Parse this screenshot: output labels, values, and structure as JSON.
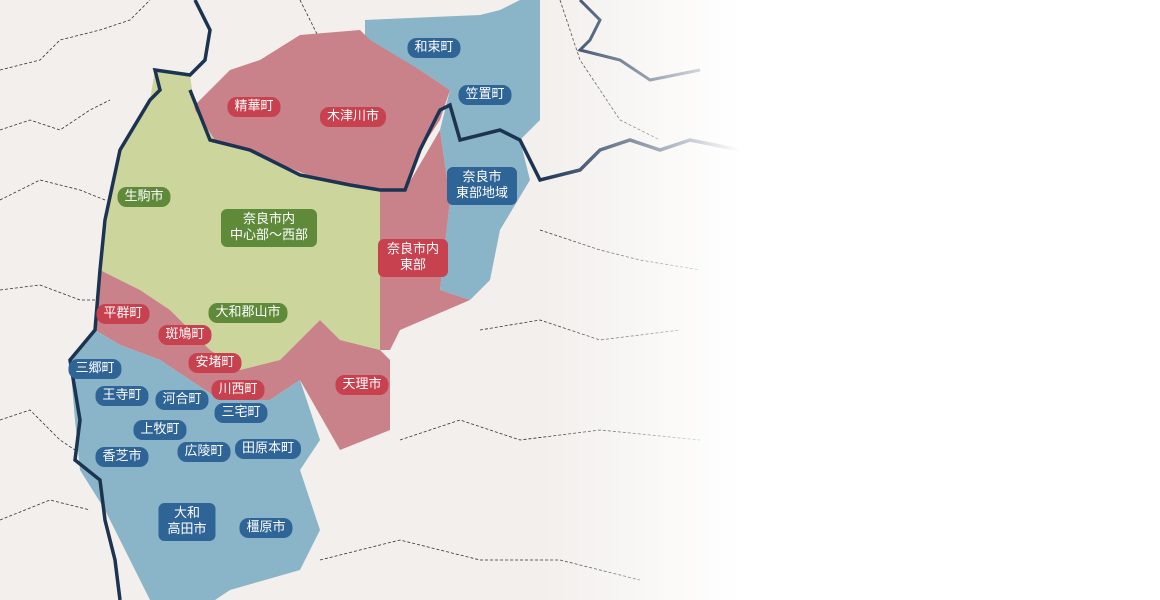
{
  "colors": {
    "background": "#f2efec",
    "region_red": "#c9828a",
    "region_blue": "#8ab5c8",
    "region_green": "#ccd69c",
    "label_red": "#c8414f",
    "label_blue": "#2f6496",
    "label_green": "#5e8a3a",
    "prefecture_border": "#1c3352"
  },
  "labels": {
    "wazuka": "和束町",
    "kasagi": "笠置町",
    "seika": "精華町",
    "kizugawa": "木津川市",
    "nara_east_area_1": "奈良市",
    "nara_east_area_2": "東部地域",
    "ikoma": "生駒市",
    "nara_central_1": "奈良市内",
    "nara_central_2": "中心部～西部",
    "nara_east_1": "奈良市内",
    "nara_east_2": "東部",
    "heguri": "平群町",
    "koriyama": "大和郡山市",
    "ikaruga": "斑鳩町",
    "ando": "安堵町",
    "sango": "三郷町",
    "kawanishi": "川西町",
    "tenri": "天理市",
    "oji": "王寺町",
    "kawai": "河合町",
    "miyake": "三宅町",
    "kanmaki": "上牧町",
    "kashiba": "香芝市",
    "koryo": "広陵町",
    "tawaramoto": "田原本町",
    "takada_1": "大和",
    "takada_2": "高田市",
    "kashihara": "橿原市"
  }
}
